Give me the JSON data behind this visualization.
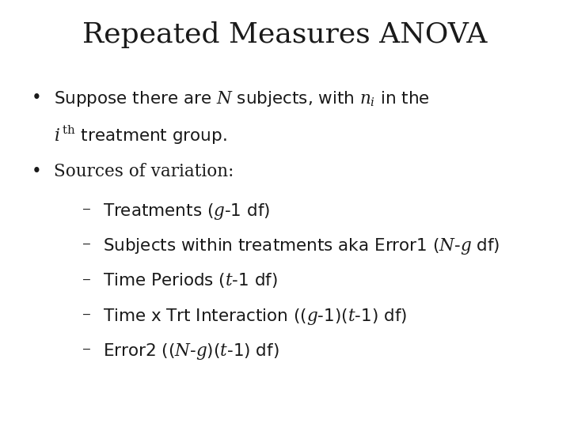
{
  "title": "Repeated Measures ANOVA",
  "background_color": "#ffffff",
  "text_color": "#1a1a1a",
  "title_fontsize": 26,
  "body_fontsize": 15.5,
  "sub_fontsize": 15.5
}
